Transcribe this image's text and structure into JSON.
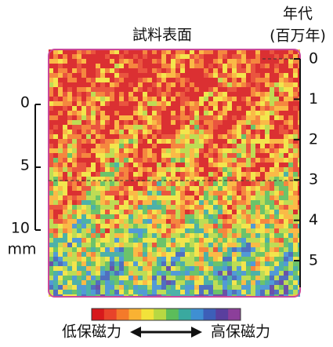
{
  "title": "試料表面",
  "age_axis": {
    "title_lines": [
      "年代",
      "(百万年)"
    ],
    "ticks": [
      0,
      1,
      2,
      3,
      4,
      5
    ]
  },
  "scale_bar": {
    "ticks": [
      0,
      5,
      10
    ],
    "unit": "mm"
  },
  "legend": {
    "low": "低保磁力",
    "high": "高保磁力",
    "colors": [
      "#d7191c",
      "#e8432a",
      "#f47a2a",
      "#f9b233",
      "#f2e23a",
      "#b7d842",
      "#5cbd5a",
      "#3aa99f",
      "#3f8fd2",
      "#3d5fb8",
      "#5a3f9e",
      "#8c3f9a"
    ]
  }
}
